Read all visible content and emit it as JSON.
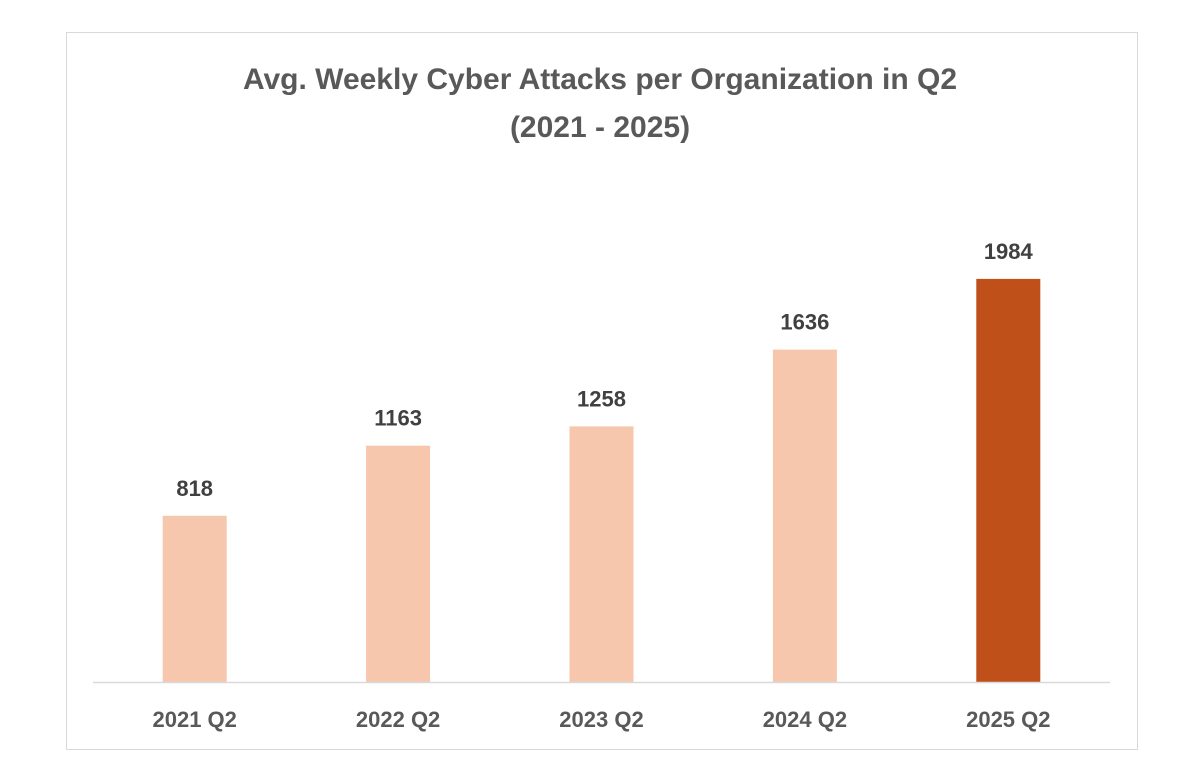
{
  "chart_data": {
    "type": "bar",
    "title_line1": "Avg. Weekly Cyber Attacks per Organization in Q2",
    "title_line2": "(2021 - 2025)",
    "categories": [
      "2021 Q2",
      "2022 Q2",
      "2023 Q2",
      "2024 Q2",
      "2025 Q2"
    ],
    "values": [
      818,
      1163,
      1258,
      1636,
      1984
    ],
    "value_labels": [
      "818",
      "1163",
      "1258",
      "1636",
      "1984"
    ],
    "xlabel": "",
    "ylabel": "",
    "ylim": [
      0,
      2000
    ],
    "grid": false,
    "legend": "none",
    "colors": {
      "default_bar": "#f6c6ad",
      "highlight_bar": "#c0501a",
      "axis": "#d9d9d9",
      "title": "#595959",
      "value_label": "#404040",
      "category_label": "#595959"
    },
    "highlight_index": 4
  }
}
